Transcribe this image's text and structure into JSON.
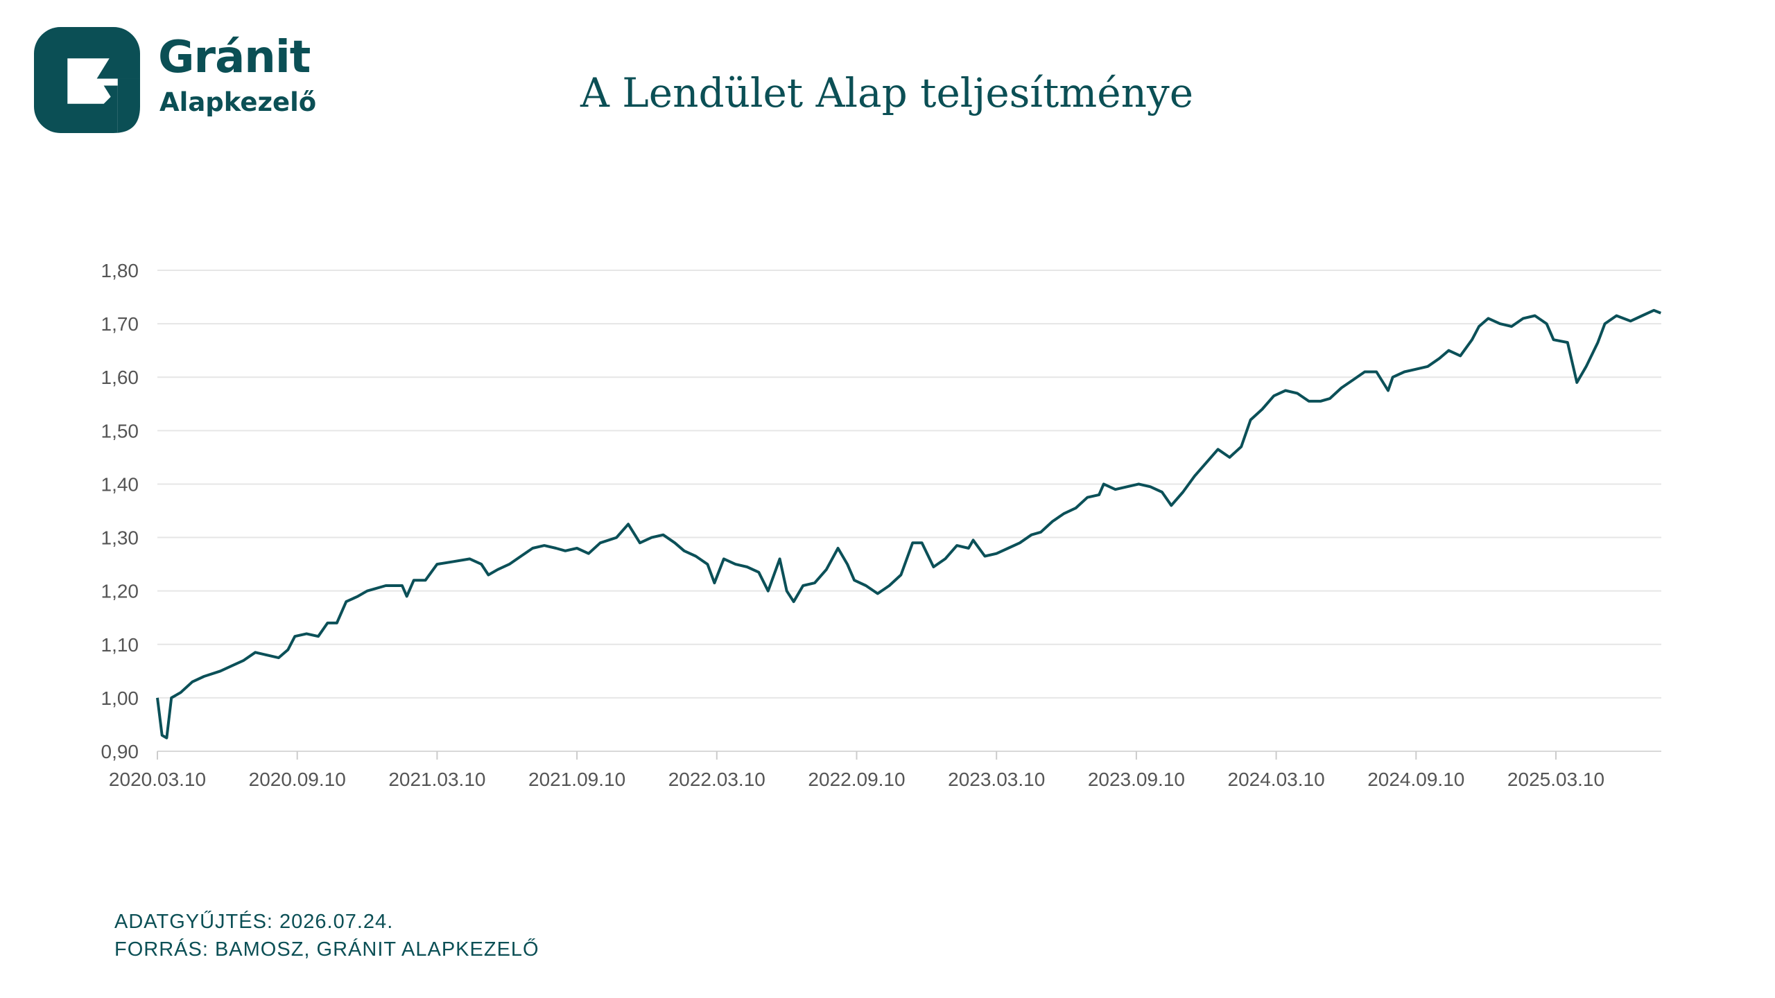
{
  "brand": {
    "name": "Gránit",
    "sub": "Alapkezelő",
    "color": "#0b4f55"
  },
  "footer": {
    "line1": "ADATGYŰJTÉS: 2026.07.24.",
    "line2": "FORRÁS: BAMOSZ, GRÁNIT ALAPKEZELŐ"
  },
  "chart_data": {
    "type": "line",
    "title": "A Lendület Alap teljesítménye",
    "xlabel": "",
    "ylabel": "",
    "x_unit": "months since 2020.03.10",
    "ylim": [
      0.9,
      1.8
    ],
    "xlim": [
      0,
      64.5
    ],
    "grid": true,
    "y_ticks": [
      {
        "v": 0.9,
        "label": "0,90"
      },
      {
        "v": 1.0,
        "label": "1,00"
      },
      {
        "v": 1.1,
        "label": "1,10"
      },
      {
        "v": 1.2,
        "label": "1,20"
      },
      {
        "v": 1.3,
        "label": "1,30"
      },
      {
        "v": 1.4,
        "label": "1,40"
      },
      {
        "v": 1.5,
        "label": "1,50"
      },
      {
        "v": 1.6,
        "label": "1,60"
      },
      {
        "v": 1.7,
        "label": "1,70"
      },
      {
        "v": 1.8,
        "label": "1,80"
      }
    ],
    "x_ticks": [
      {
        "v": 0,
        "label": "2020.03.10"
      },
      {
        "v": 6,
        "label": "2020.09.10"
      },
      {
        "v": 12,
        "label": "2021.03.10"
      },
      {
        "v": 18,
        "label": "2021.09.10"
      },
      {
        "v": 24,
        "label": "2022.03.10"
      },
      {
        "v": 30,
        "label": "2022.09.10"
      },
      {
        "v": 36,
        "label": "2023.03.10"
      },
      {
        "v": 42,
        "label": "2023.09.10"
      },
      {
        "v": 48,
        "label": "2024.03.10"
      },
      {
        "v": 54,
        "label": "2024.09.10"
      },
      {
        "v": 60,
        "label": "2025.03.10"
      }
    ],
    "series": [
      {
        "name": "Lendület Alap",
        "color": "#0b5058",
        "x": [
          0,
          0.2,
          0.4,
          0.6,
          1.0,
          1.5,
          2.0,
          2.7,
          3.2,
          3.7,
          4.2,
          4.7,
          5.2,
          5.6,
          5.9,
          6.4,
          6.9,
          7.3,
          7.7,
          8.1,
          8.6,
          9.0,
          9.8,
          10.5,
          10.7,
          11.0,
          11.5,
          12.0,
          12.7,
          13.4,
          13.9,
          14.2,
          14.6,
          15.1,
          15.6,
          16.1,
          16.6,
          17.1,
          17.5,
          18.0,
          18.5,
          19.0,
          19.7,
          20.2,
          20.7,
          21.2,
          21.7,
          22.2,
          22.6,
          23.1,
          23.6,
          23.9,
          24.3,
          24.8,
          25.3,
          25.8,
          26.2,
          26.7,
          27.0,
          27.3,
          27.7,
          28.2,
          28.7,
          29.2,
          29.6,
          29.9,
          30.4,
          30.9,
          31.4,
          31.9,
          32.4,
          32.8,
          33.3,
          33.8,
          34.3,
          34.8,
          35.0,
          35.5,
          36.0,
          36.5,
          37.0,
          37.5,
          37.9,
          38.4,
          38.9,
          39.4,
          39.9,
          40.4,
          40.6,
          41.1,
          41.6,
          42.1,
          42.6,
          43.1,
          43.5,
          44.0,
          44.5,
          45.0,
          45.5,
          46.0,
          46.5,
          46.9,
          47.4,
          47.9,
          48.4,
          48.9,
          49.4,
          49.9,
          50.3,
          50.8,
          51.3,
          51.8,
          52.3,
          52.8,
          53.0,
          53.5,
          54.0,
          54.5,
          55.0,
          55.4,
          55.9,
          56.4,
          56.7,
          57.1,
          57.6,
          58.1,
          58.6,
          59.1,
          59.6,
          59.9,
          60.5,
          60.9,
          61.3,
          61.8,
          62.1,
          62.6,
          63.2,
          63.7,
          64.2,
          64.5
        ],
        "values": [
          1.0,
          0.93,
          0.925,
          1.0,
          1.01,
          1.03,
          1.04,
          1.05,
          1.06,
          1.07,
          1.085,
          1.08,
          1.075,
          1.09,
          1.115,
          1.12,
          1.115,
          1.14,
          1.14,
          1.18,
          1.19,
          1.2,
          1.21,
          1.21,
          1.19,
          1.22,
          1.22,
          1.25,
          1.255,
          1.26,
          1.25,
          1.23,
          1.24,
          1.25,
          1.265,
          1.28,
          1.285,
          1.28,
          1.275,
          1.28,
          1.27,
          1.29,
          1.3,
          1.325,
          1.29,
          1.3,
          1.305,
          1.29,
          1.275,
          1.265,
          1.25,
          1.215,
          1.26,
          1.25,
          1.245,
          1.235,
          1.2,
          1.26,
          1.2,
          1.18,
          1.21,
          1.215,
          1.24,
          1.28,
          1.25,
          1.22,
          1.21,
          1.195,
          1.21,
          1.23,
          1.29,
          1.29,
          1.245,
          1.26,
          1.285,
          1.28,
          1.295,
          1.265,
          1.27,
          1.28,
          1.29,
          1.305,
          1.31,
          1.33,
          1.345,
          1.355,
          1.375,
          1.38,
          1.4,
          1.39,
          1.395,
          1.4,
          1.395,
          1.385,
          1.36,
          1.385,
          1.415,
          1.44,
          1.465,
          1.45,
          1.47,
          1.52,
          1.54,
          1.565,
          1.575,
          1.57,
          1.555,
          1.555,
          1.56,
          1.58,
          1.595,
          1.61,
          1.61,
          1.575,
          1.6,
          1.61,
          1.615,
          1.62,
          1.635,
          1.65,
          1.64,
          1.67,
          1.695,
          1.71,
          1.7,
          1.695,
          1.71,
          1.715,
          1.7,
          1.67,
          1.665,
          1.59,
          1.62,
          1.665,
          1.7,
          1.715,
          1.705,
          1.715,
          1.725,
          1.72
        ]
      }
    ]
  }
}
